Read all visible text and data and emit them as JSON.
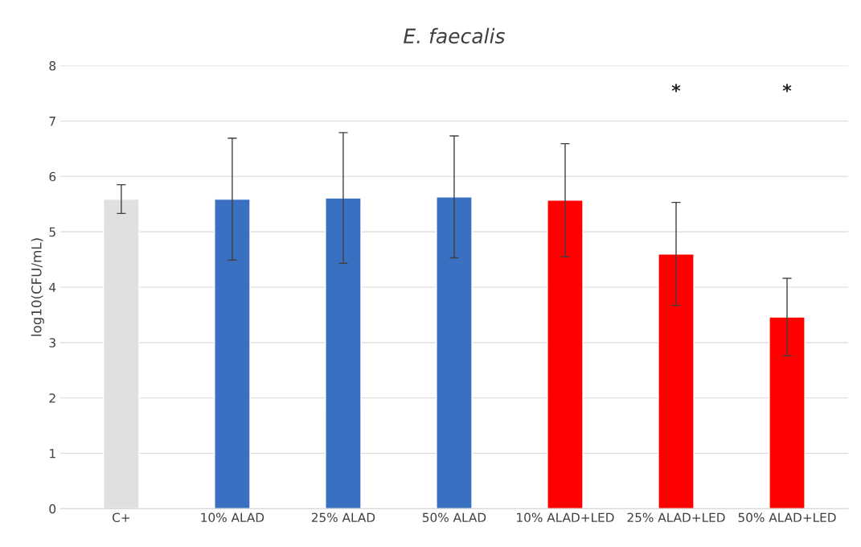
{
  "chart_data": {
    "type": "bar",
    "title": "E. faecalis",
    "ylabel": "log10(CFU/mL)",
    "categories": [
      "C+",
      "10% ALAD",
      "25% ALAD",
      "50% ALAD",
      "10% ALAD+LED",
      "25% ALAD+LED",
      "50% ALAD+LED"
    ],
    "values": [
      5.59,
      5.59,
      5.61,
      5.63,
      5.57,
      4.6,
      3.46
    ],
    "errors": [
      0.26,
      1.1,
      1.18,
      1.1,
      1.02,
      0.93,
      0.7
    ],
    "colors": [
      "#e0e0e0",
      "#3a70c1",
      "#3a70c1",
      "#3a70c1",
      "#ff0000",
      "#ff0000",
      "#ff0000"
    ],
    "ylim": [
      0,
      8
    ],
    "yticks": [
      0,
      1,
      2,
      3,
      4,
      5,
      6,
      7,
      8
    ],
    "grid": "y",
    "legend": false,
    "annotations": [
      "*",
      "*"
    ]
  }
}
